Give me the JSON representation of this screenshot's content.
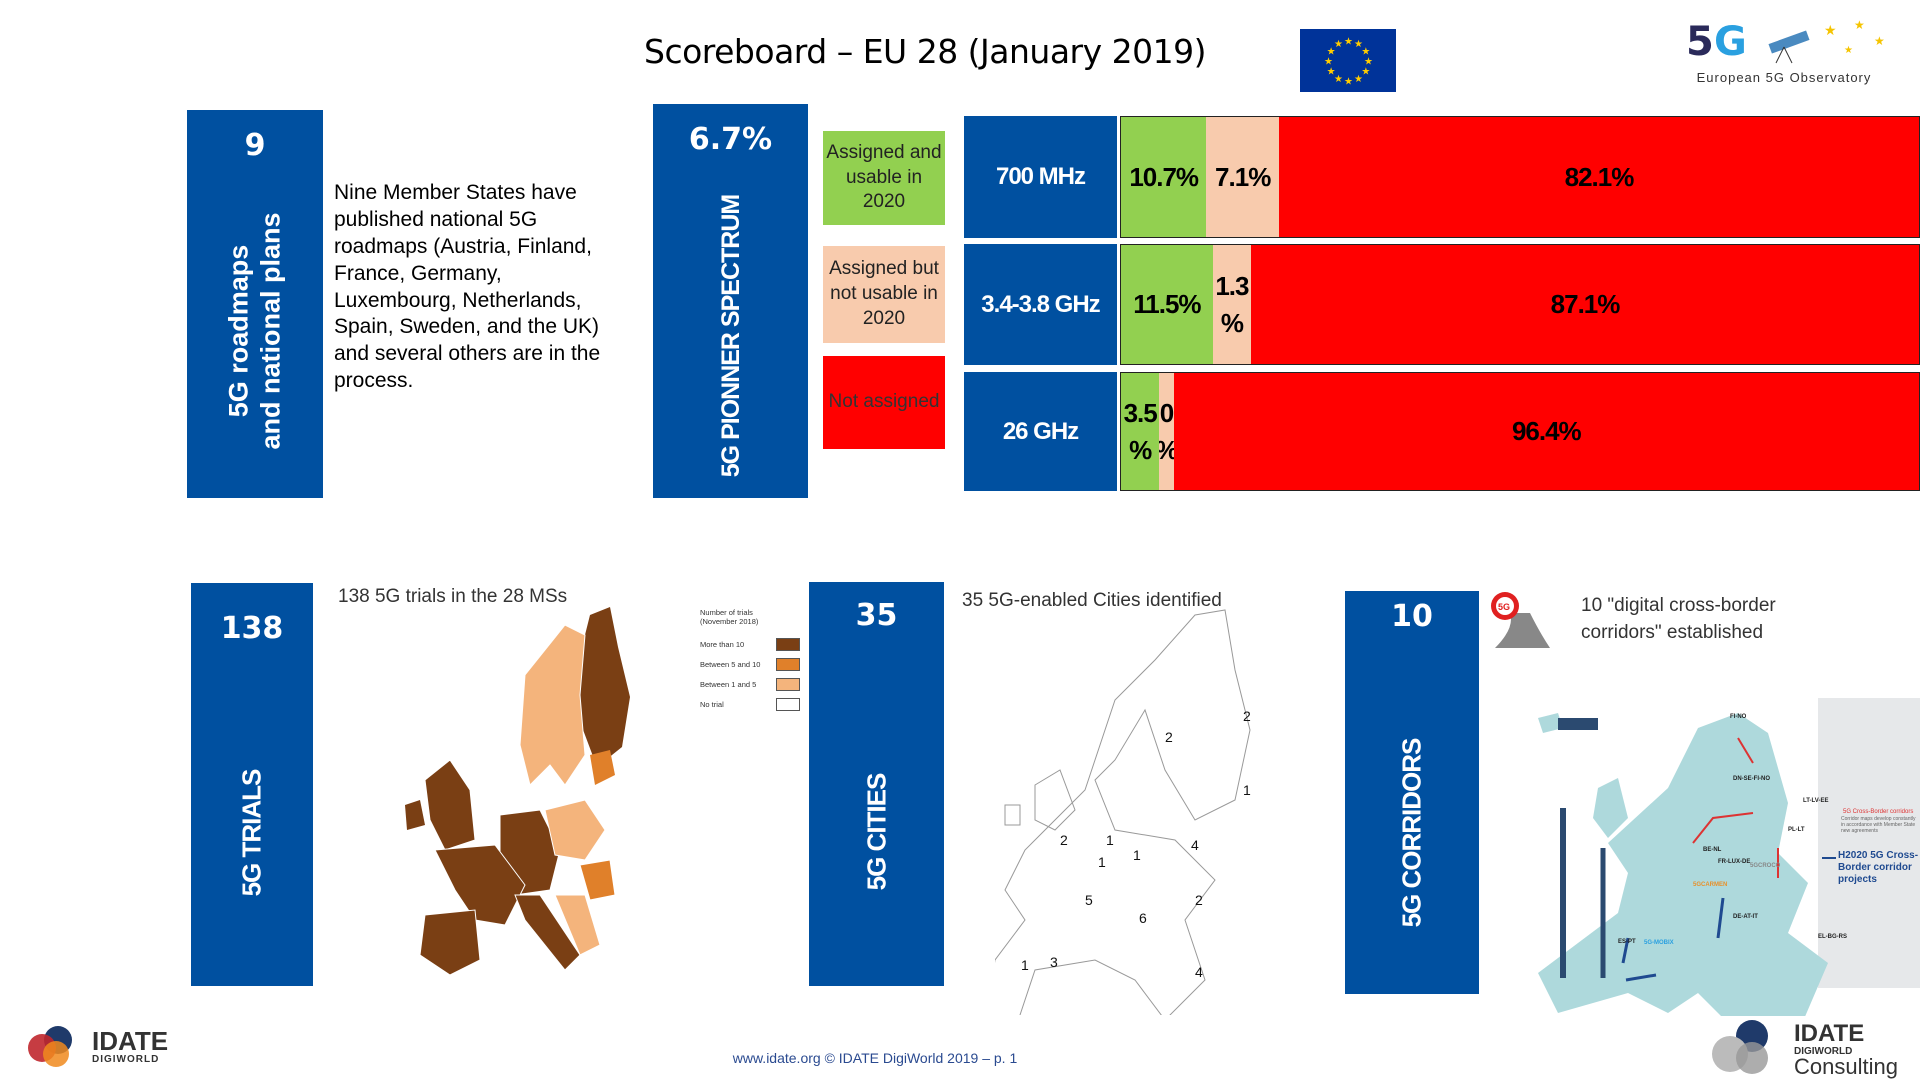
{
  "header": {
    "title": "Scoreboard – EU 28 (January 2019)",
    "logo_text": "European 5G Observatory"
  },
  "roadmaps": {
    "value": "9",
    "label_line1": "5G roadmaps",
    "label_line2": "and national plans",
    "text": "Nine Member States have published national 5G roadmaps (Austria, Finland, France, Germany, Luxembourg, Netherlands, Spain, Sweden, and the UK) and several others are in the process."
  },
  "spectrum": {
    "value": "6.7%",
    "label": "5G PIONNER SPECTRUM",
    "legend": [
      {
        "label": "Assigned and usable in 2020",
        "color": "#92d050"
      },
      {
        "label": "Assigned but not usable in 2020",
        "color": "#f8cbad"
      },
      {
        "label": "Not assigned",
        "color": "#ff0000"
      }
    ],
    "bands": [
      {
        "name": "700 MHz",
        "values": [
          10.7,
          7.1,
          82.1
        ],
        "labels": [
          "10.7%",
          "7.1%",
          "82.1%"
        ]
      },
      {
        "name": "3.4-3.8 GHz",
        "values": [
          11.5,
          1.3,
          87.1
        ],
        "labels": [
          "11.5%",
          "1.3 %",
          "87.1%"
        ]
      },
      {
        "name": "26 GHz",
        "values": [
          3.5,
          0,
          96.4
        ],
        "labels": [
          "3.5 %",
          "0 %",
          "96.4%"
        ]
      }
    ]
  },
  "trials": {
    "value": "138",
    "label": "5G TRIALS",
    "caption": "138 5G trials in the 28 MSs",
    "legend_title": "Number of trials (November 2018)",
    "legend": [
      {
        "label": "More than 10",
        "color": "#7a3f14"
      },
      {
        "label": "Between 5 and 10",
        "color": "#e0802a"
      },
      {
        "label": "Between 1 and 5",
        "color": "#f4b47c"
      },
      {
        "label": "No trial",
        "color": "#ffffff"
      }
    ]
  },
  "cities": {
    "value": "35",
    "label": "5G CITIES",
    "caption": "35 5G-enabled Cities identified",
    "map_counts": [
      "2",
      "2",
      "1",
      "2",
      "1",
      "1",
      "1",
      "4",
      "5",
      "6",
      "2",
      "1",
      "3",
      "4"
    ]
  },
  "corridors": {
    "value": "10",
    "label": "5G CORRIDORS",
    "caption": "10 \"digital cross-border corridors\" established",
    "map_labels": [
      "FI-NO",
      "DN-SE-FI-NO",
      "LT-LV-EE",
      "PL-LT",
      "BE-NL",
      "FR-LUX-DE",
      "5GCROCO",
      "5GCARMEN",
      "DE-AT-IT",
      "ES-PT",
      "5G-MOBIX",
      "EL-BG-RS"
    ],
    "map_legend": [
      "5G Cross-Border corridors",
      "Corridor maps develop constantly in accordance with Member State new agreements",
      "H2020 5G Cross-Border corridor projects"
    ]
  },
  "footer": {
    "text": "www.idate.org © IDATE DigiWorld 2019 – p. 1",
    "left_logo": "IDATE",
    "left_logo_sub": "DIGIWORLD",
    "right_logo": "IDATE",
    "right_logo_sub": "DIGIWORLD",
    "right_logo_sub2": "Consulting"
  },
  "colors": {
    "blue": "#0050a0",
    "green": "#92d050",
    "peach": "#f8cbad",
    "red": "#ff0000"
  }
}
